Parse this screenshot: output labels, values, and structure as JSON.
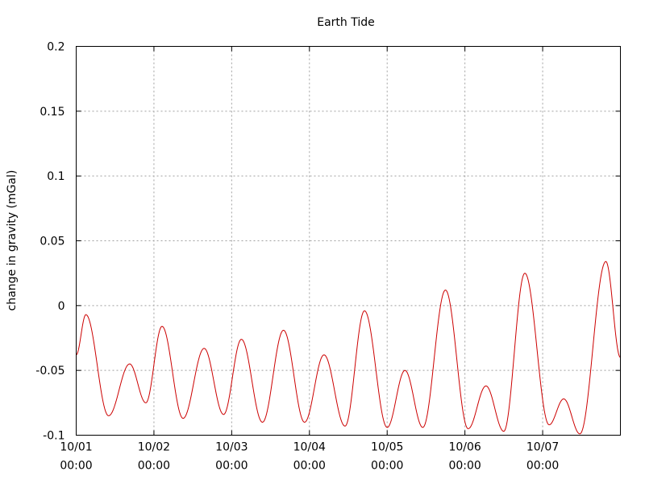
{
  "chart_data": {
    "type": "line",
    "title": "Earth Tide",
    "xlabel": "",
    "ylabel": "change in gravity (mGal)",
    "ylim": [
      -0.1,
      0.2
    ],
    "xlim": [
      "2010-10-01T00:00",
      "2010-10-08T00:00"
    ],
    "y_ticks": [
      "0.2",
      "0.15",
      "0.1",
      "0.05",
      "0",
      "-0.05",
      "-0.1"
    ],
    "x_ticks": [
      {
        "date": "10/01",
        "time": "00:00"
      },
      {
        "date": "10/02",
        "time": "00:00"
      },
      {
        "date": "10/03",
        "time": "00:00"
      },
      {
        "date": "10/04",
        "time": "00:00"
      },
      {
        "date": "10/05",
        "time": "00:00"
      },
      {
        "date": "10/06",
        "time": "00:00"
      },
      {
        "date": "10/07",
        "time": "00:00"
      }
    ],
    "grid": true,
    "legend": "none",
    "series": [
      {
        "color": "#cc0000",
        "points": [
          [
            "10/01 00:00",
            -0.038
          ],
          [
            "10/01 03:00",
            -0.007
          ],
          [
            "10/01 10:00",
            -0.085
          ],
          [
            "10/01 16:30",
            -0.045
          ],
          [
            "10/01 21:30",
            -0.075
          ],
          [
            "10/02 02:30",
            -0.016
          ],
          [
            "10/02 09:00",
            -0.087
          ],
          [
            "10/02 15:30",
            -0.033
          ],
          [
            "10/02 21:30",
            -0.084
          ],
          [
            "10/03 03:00",
            -0.026
          ],
          [
            "10/03 09:30",
            -0.09
          ],
          [
            "10/03 16:00",
            -0.019
          ],
          [
            "10/03 22:30",
            -0.09
          ],
          [
            "10/04 04:30",
            -0.038
          ],
          [
            "10/04 11:00",
            -0.093
          ],
          [
            "10/04 17:00",
            -0.004
          ],
          [
            "10/05 00:00",
            -0.094
          ],
          [
            "10/05 05:30",
            -0.05
          ],
          [
            "10/05 11:00",
            -0.094
          ],
          [
            "10/05 18:00",
            0.012
          ],
          [
            "10/06 01:00",
            -0.095
          ],
          [
            "10/06 06:30",
            -0.062
          ],
          [
            "10/06 12:00",
            -0.097
          ],
          [
            "10/06 18:30",
            0.025
          ],
          [
            "10/07 02:00",
            -0.092
          ],
          [
            "10/07 06:30",
            -0.072
          ],
          [
            "10/07 11:30",
            -0.099
          ],
          [
            "10/07 19:30",
            0.034
          ],
          [
            "10/08 00:00",
            -0.04
          ]
        ]
      }
    ]
  }
}
